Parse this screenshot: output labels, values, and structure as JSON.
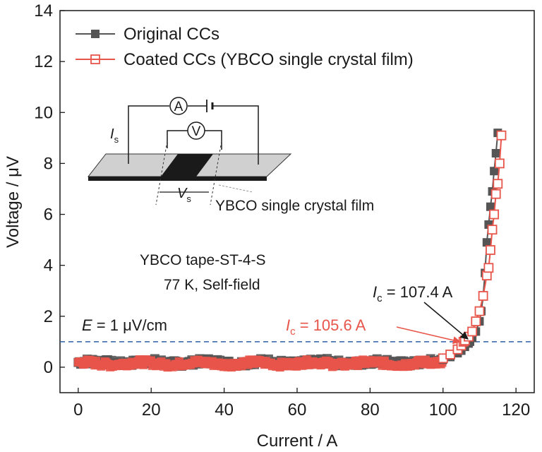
{
  "chart_data": {
    "type": "scatter",
    "title": "",
    "xlabel": "Current / A",
    "ylabel": "Voltage / μV",
    "xlim": [
      -5,
      125
    ],
    "ylim": [
      -1,
      14
    ],
    "xticks": [
      0,
      20,
      40,
      60,
      80,
      100,
      120
    ],
    "yticks": [
      0,
      2,
      4,
      6,
      8,
      10,
      12,
      14
    ],
    "grid": false,
    "legend_position": "top-left",
    "series": [
      {
        "name": "Original CCs",
        "color": "#555555",
        "marker": "filled-square",
        "x": [
          100,
          102,
          104,
          105,
          106,
          107,
          107.4,
          108,
          109,
          110,
          110.5,
          111,
          111.5,
          112,
          112.5,
          113,
          113.5,
          114,
          114.5,
          115
        ],
        "y": [
          0.3,
          0.4,
          0.55,
          0.65,
          0.8,
          0.93,
          1.0,
          1.15,
          1.4,
          1.8,
          2.2,
          2.8,
          3.7,
          4.9,
          5.6,
          6.3,
          6.9,
          7.7,
          8.4,
          9.2
        ]
      },
      {
        "name": "Coated CCs (YBCO single crystal film)",
        "color": "#e8554a",
        "marker": "open-square",
        "x": [
          100,
          102,
          104,
          105,
          105.6,
          106,
          107,
          108,
          109,
          110,
          111,
          112,
          112.5,
          113,
          113.5,
          114,
          114.5,
          115,
          115.5,
          116
        ],
        "y": [
          0.35,
          0.5,
          0.7,
          0.85,
          1.0,
          1.05,
          1.2,
          1.4,
          1.8,
          2.2,
          2.8,
          3.6,
          3.9,
          4.6,
          5.4,
          6.0,
          6.8,
          7.2,
          8.0,
          9.1
        ]
      }
    ],
    "noise_band": {
      "x_start": 0,
      "x_end": 100,
      "y_mean": 0.15
    },
    "reference_line": {
      "y": 1,
      "label_prefix": "E",
      "label": " = 1 μV/cm",
      "color": "#2e5fa8"
    },
    "annotations": [
      {
        "italic": "I",
        "sub": "c",
        "text": " = 107.4 A",
        "color": "#1a1a1a",
        "target": [
          107.4,
          1.0
        ]
      },
      {
        "italic": "I",
        "sub": "c",
        "text": " = 105.6 A",
        "color": "#e8554a",
        "target": [
          105.6,
          1.0
        ]
      }
    ],
    "notes": [
      "YBCO tape-ST-4-S",
      "77 K, Self-field"
    ],
    "inset": {
      "current_label_italic": "I",
      "current_label_sub": "s",
      "voltage_label_italic": "V",
      "voltage_label_sub": "s",
      "ammeter": "A",
      "voltmeter": "V",
      "film_label": "YBCO single crystal film"
    }
  }
}
